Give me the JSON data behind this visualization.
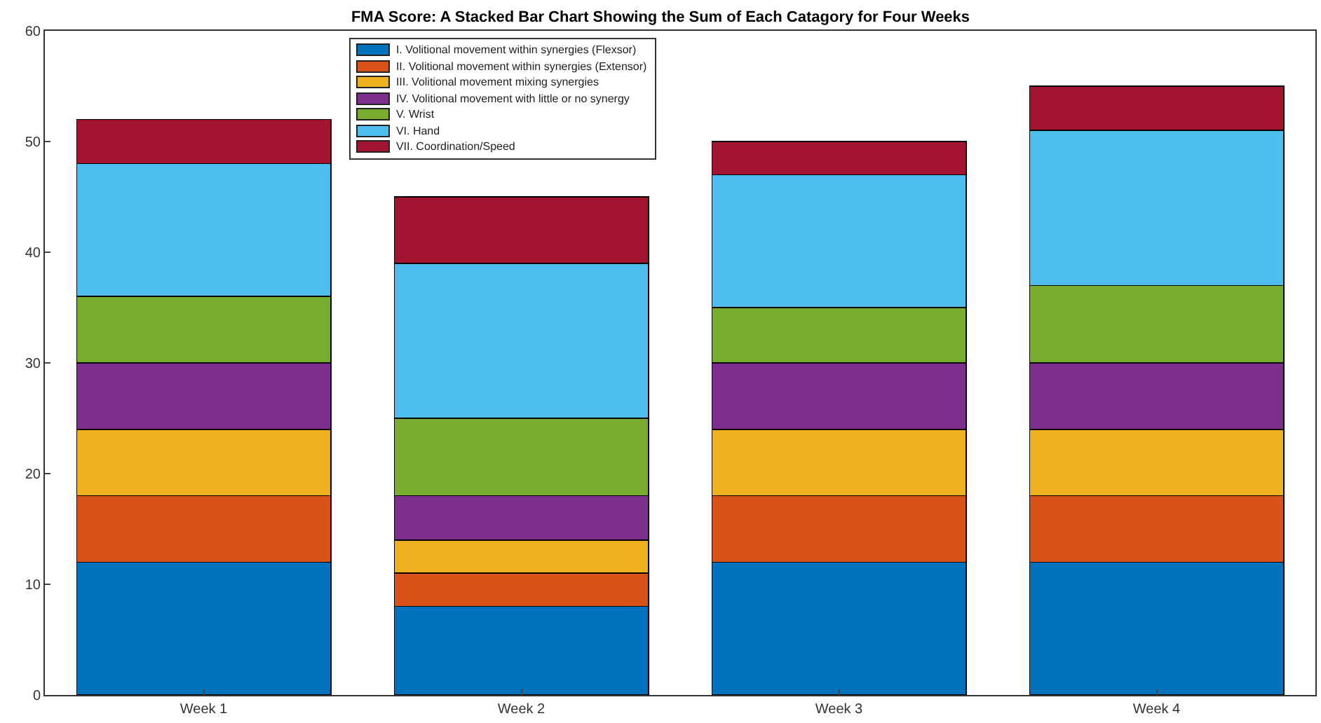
{
  "chart_data": {
    "type": "bar",
    "title": "FMA Score: A Stacked Bar Chart Showing the Sum of Each Catagory for Four Weeks",
    "stacked": true,
    "categories": [
      "Week 1",
      "Week 2",
      "Week 3",
      "Week 4"
    ],
    "series": [
      {
        "name": "I. Volitional movement within synergies (Flexsor)",
        "color": "#0072bd",
        "values": [
          12,
          8,
          12,
          12
        ]
      },
      {
        "name": "II. Volitional movement within synergies (Extensor)",
        "color": "#d95319",
        "values": [
          6,
          3,
          6,
          6
        ]
      },
      {
        "name": "III. Volitional movement mixing synergies",
        "color": "#edb120",
        "values": [
          6,
          3,
          6,
          6
        ]
      },
      {
        "name": "IV. Volitional movement with little or no synergy",
        "color": "#7e2f8e",
        "values": [
          6,
          4,
          6,
          6
        ]
      },
      {
        "name": "V. Wrist",
        "color": "#77ac30",
        "values": [
          6,
          7,
          5,
          7
        ]
      },
      {
        "name": "VI. Hand",
        "color": "#4dbeee",
        "values": [
          12,
          14,
          12,
          14
        ]
      },
      {
        "name": "VII. Coordination/Speed",
        "color": "#a2142f",
        "values": [
          4,
          6,
          3,
          4
        ]
      }
    ],
    "ylim": [
      0,
      60
    ],
    "yticks": [
      0,
      10,
      20,
      30,
      40,
      50,
      60
    ],
    "grid": false,
    "legend": "top"
  }
}
